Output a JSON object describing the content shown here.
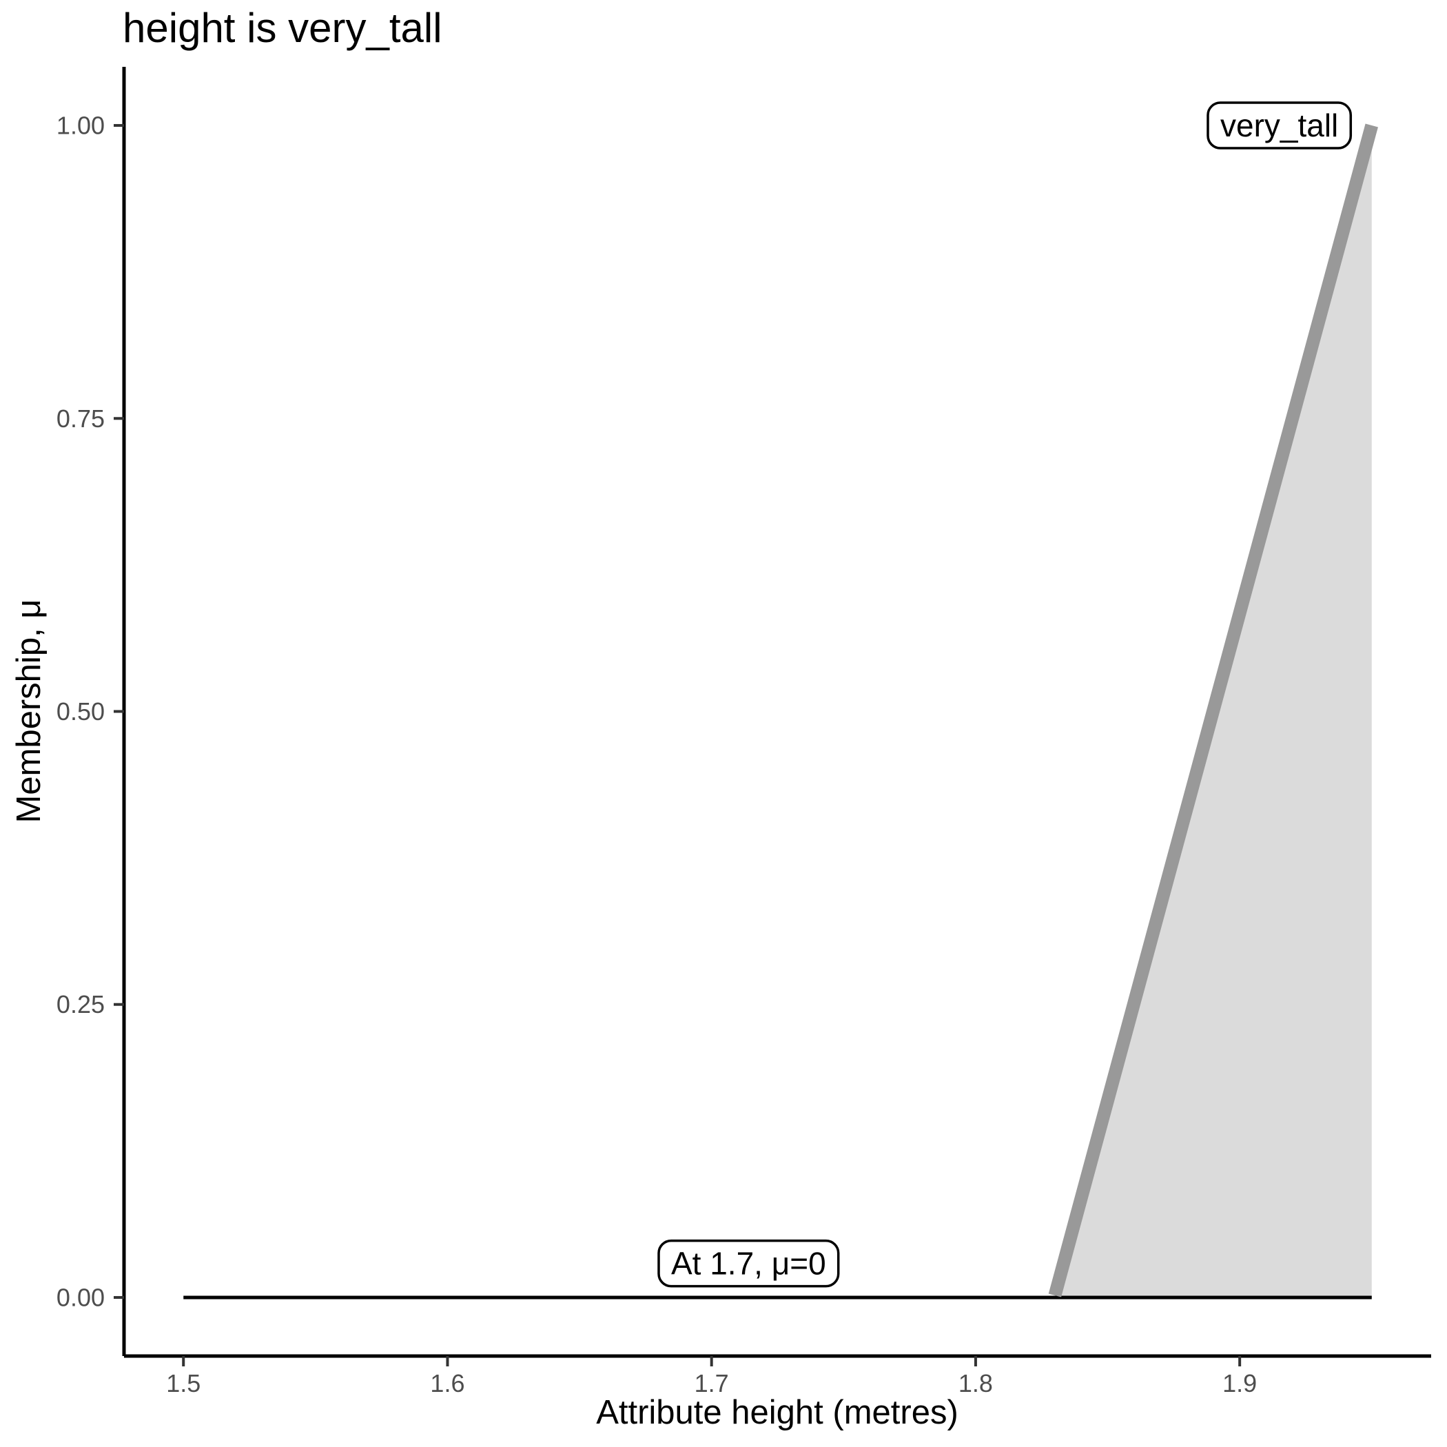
{
  "title": "height is very_tall",
  "chart_data": {
    "type": "area",
    "title": "height is very_tall",
    "xlabel": "Attribute height (metres)",
    "ylabel": "Membership, μ",
    "xlim": [
      1.4775,
      1.9725
    ],
    "ylim": [
      -0.05,
      1.05
    ],
    "grid": false,
    "legend": "none",
    "x_ticks": [
      {
        "value": 1.5,
        "label": "1.5"
      },
      {
        "value": 1.6,
        "label": "1.6"
      },
      {
        "value": 1.7,
        "label": "1.7"
      },
      {
        "value": 1.8,
        "label": "1.8"
      },
      {
        "value": 1.9,
        "label": "1.9"
      }
    ],
    "y_ticks": [
      {
        "value": 0.0,
        "label": "0.00"
      },
      {
        "value": 0.25,
        "label": "0.25"
      },
      {
        "value": 0.5,
        "label": "0.50"
      },
      {
        "value": 0.75,
        "label": "0.75"
      },
      {
        "value": 1.0,
        "label": "1.00"
      }
    ],
    "series": [
      {
        "name": "zero-baseline",
        "type": "line",
        "color": "#000000",
        "width": 5,
        "points": [
          [
            1.5,
            0
          ],
          [
            1.95,
            0
          ]
        ]
      },
      {
        "name": "very_tall-membership",
        "type": "area",
        "line_color": "#999999",
        "line_width": 19,
        "fill_color": "#DBDBDB",
        "points": [
          [
            1.83,
            0
          ],
          [
            1.95,
            1
          ]
        ],
        "close_to_y": 0,
        "close_at_x": 1.95
      }
    ],
    "annotations": [
      {
        "text": "very_tall",
        "x": 1.915,
        "y": 1.0
      },
      {
        "text": "At 1.7, μ=0",
        "x": 1.714,
        "y": 0.029
      }
    ]
  },
  "style": {
    "axis_color": "#000000",
    "axis_width": 5,
    "tick_color": "#333333",
    "tick_width": 4,
    "tick_length": 15,
    "tick_label_color": "#4D4D4D",
    "tick_label_size": 36,
    "annotation_text_color": "#000000",
    "annotation_text_size": 46,
    "annotation_border_color": "#000000",
    "annotation_border_width": 3.5,
    "annotation_bg": "#FFFFFF",
    "annotation_radius": 18
  }
}
